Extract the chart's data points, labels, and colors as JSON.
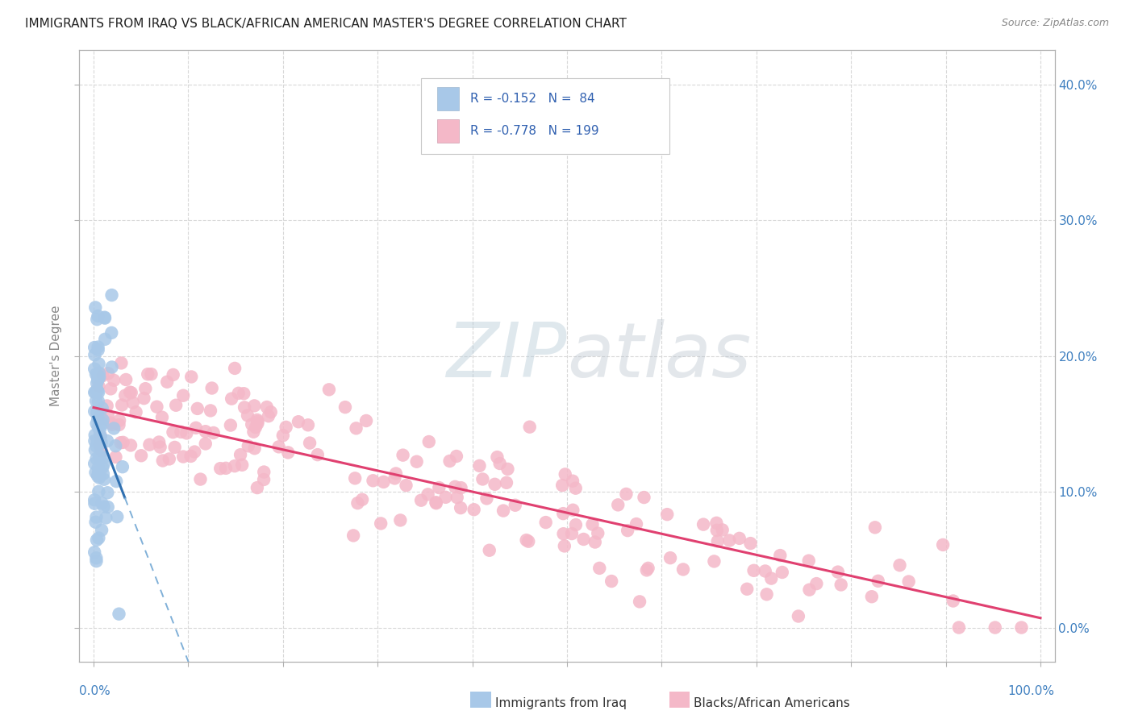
{
  "title": "IMMIGRANTS FROM IRAQ VS BLACK/AFRICAN AMERICAN MASTER'S DEGREE CORRELATION CHART",
  "source": "Source: ZipAtlas.com",
  "ylabel": "Master's Degree",
  "ylim": [
    -0.025,
    0.425
  ],
  "xlim": [
    -0.015,
    1.015
  ],
  "blue_color": "#a8c8e8",
  "pink_color": "#f4b8c8",
  "trend_blue_solid": "#3070b0",
  "trend_pink_solid": "#e04070",
  "trend_blue_dash": "#80b0d8",
  "watermark_zip": "#c8d8e8",
  "watermark_atlas": "#c0c8d0",
  "grid_color": "#d8d8d8",
  "axis_color": "#b0b0b0",
  "right_tick_color": "#4080c0",
  "legend_edge": "#c8c8c8",
  "legend_R_color": "#3060b0",
  "legend_N_color": "#3080d0",
  "ytick_positions": [
    0.0,
    0.1,
    0.2,
    0.3,
    0.4
  ],
  "ytick_labels_right": [
    "0.0%",
    "10.0%",
    "20.0%",
    "30.0%",
    "40.0%"
  ],
  "xtick_positions": [
    0.0,
    0.1,
    0.2,
    0.3,
    0.4,
    0.5,
    0.6,
    0.7,
    0.8,
    0.9,
    1.0
  ],
  "blue_intercept": 0.155,
  "blue_slope": -1.8,
  "blue_solid_xrange": [
    0.0,
    0.033
  ],
  "blue_dash_xrange": [
    0.033,
    0.73
  ],
  "pink_intercept": 0.162,
  "pink_slope": -0.155,
  "pink_solid_xrange": [
    0.0,
    1.0
  ]
}
